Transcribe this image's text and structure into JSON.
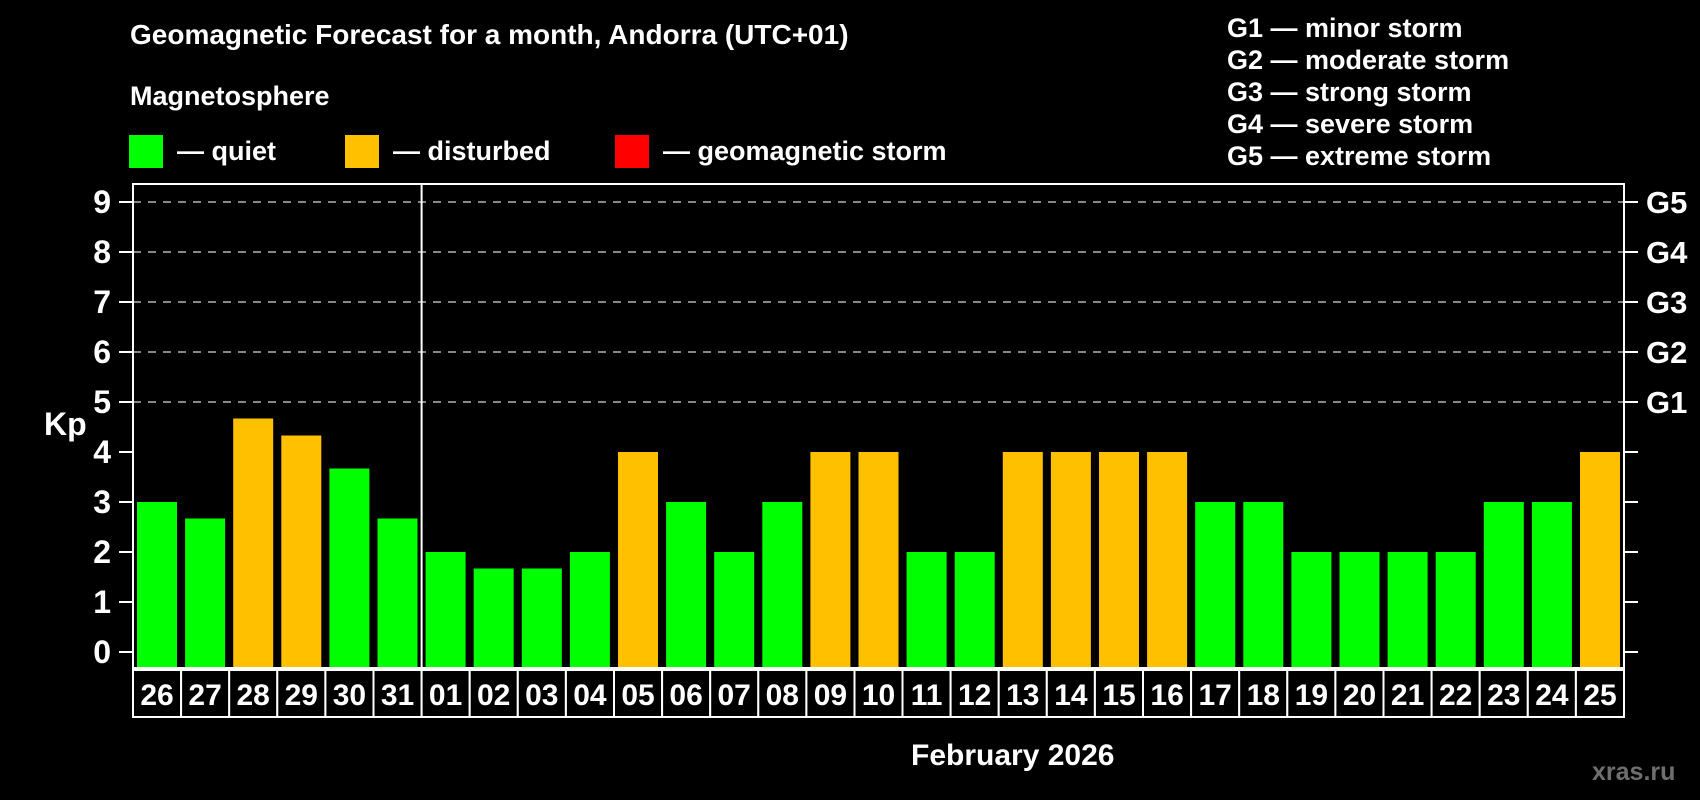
{
  "header": {
    "subtitle": "Magnetosphere"
  },
  "legend": {
    "items": [
      {
        "key": "quiet",
        "label": "— quiet",
        "color": "#00ff00"
      },
      {
        "key": "disturbed",
        "label": "— disturbed",
        "color": "#ffc000"
      },
      {
        "key": "storm",
        "label": "— geomagnetic storm",
        "color": "#ff0000"
      }
    ]
  },
  "storm_scale": [
    "G1 — minor storm",
    "G2 — moderate storm",
    "G3 — strong storm",
    "G4 — severe storm",
    "G5 — extreme storm"
  ],
  "watermark": "xras.ru",
  "chart_data": {
    "type": "bar",
    "title": "Geomagnetic Forecast for a month, Andorra (UTC+01)",
    "ylabel": "Kp",
    "xlabel": "February 2026",
    "ylim": [
      0,
      9
    ],
    "yticks": [
      "0",
      "1",
      "2",
      "3",
      "4",
      "5",
      "6",
      "7",
      "8",
      "9"
    ],
    "gridlines_at": [
      5,
      6,
      7,
      8,
      9
    ],
    "grid": "dashed horizontal lines at storm levels only",
    "legend_position": "top-left",
    "right_axis_labels": [
      {
        "kp": 5,
        "label": "G1"
      },
      {
        "kp": 6,
        "label": "G2"
      },
      {
        "kp": 7,
        "label": "G3"
      },
      {
        "kp": 8,
        "label": "G4"
      },
      {
        "kp": 9,
        "label": "G5"
      }
    ],
    "categories": [
      "26",
      "27",
      "28",
      "29",
      "30",
      "31",
      "01",
      "02",
      "03",
      "04",
      "05",
      "06",
      "07",
      "08",
      "09",
      "10",
      "11",
      "12",
      "13",
      "14",
      "15",
      "16",
      "17",
      "18",
      "19",
      "20",
      "21",
      "22",
      "23",
      "24",
      "25"
    ],
    "values": [
      3.0,
      2.67,
      4.67,
      4.33,
      3.67,
      2.67,
      2.0,
      1.67,
      1.67,
      2.0,
      4.0,
      3.0,
      2.0,
      3.0,
      4.0,
      4.0,
      2.0,
      2.0,
      4.0,
      4.0,
      4.0,
      4.0,
      3.0,
      3.0,
      2.0,
      2.0,
      2.0,
      2.0,
      3.0,
      3.0,
      4.0
    ],
    "states": [
      "quiet",
      "quiet",
      "disturbed",
      "disturbed",
      "quiet",
      "quiet",
      "quiet",
      "quiet",
      "quiet",
      "quiet",
      "disturbed",
      "quiet",
      "quiet",
      "quiet",
      "disturbed",
      "disturbed",
      "quiet",
      "quiet",
      "disturbed",
      "disturbed",
      "disturbed",
      "disturbed",
      "quiet",
      "quiet",
      "quiet",
      "quiet",
      "quiet",
      "quiet",
      "quiet",
      "quiet",
      "disturbed"
    ],
    "separator_after_index": 5
  }
}
